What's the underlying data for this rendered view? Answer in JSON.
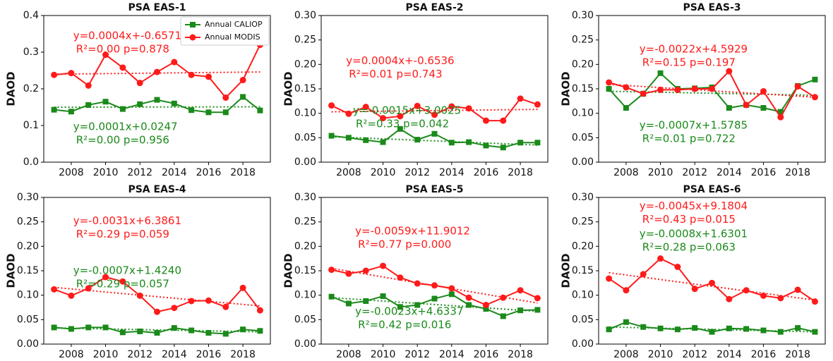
{
  "chart_data": [
    {
      "type": "line",
      "title": "PSA EAS-1",
      "ylabel": "DAOD",
      "legend": "upper right",
      "x": [
        2007,
        2008,
        2009,
        2010,
        2011,
        2012,
        2013,
        2014,
        2015,
        2016,
        2017,
        2018,
        2019
      ],
      "xlim": [
        2006.4,
        2019.6
      ],
      "xticks": [
        2008,
        2010,
        2012,
        2014,
        2016,
        2018
      ],
      "ylim": [
        0,
        0.4
      ],
      "yticks": [
        {
          "value": 0,
          "label": "0.0"
        },
        0.1,
        0.2,
        0.3,
        0.4
      ],
      "series": [
        {
          "name": "Annual CALIOP",
          "color": "#1a8a1a",
          "marker": "square",
          "values": [
            0.143,
            0.138,
            0.156,
            0.165,
            0.145,
            0.158,
            0.17,
            0.16,
            0.142,
            0.136,
            0.136,
            0.178,
            0.141
          ],
          "trend": [
            0.15,
            0.151
          ]
        },
        {
          "name": "Annual MODIS",
          "color": "#ff1a1a",
          "marker": "circle",
          "values": [
            0.238,
            0.243,
            0.209,
            0.293,
            0.258,
            0.216,
            0.246,
            0.273,
            0.238,
            0.233,
            0.176,
            0.224,
            0.32
          ],
          "trend": [
            0.24,
            0.246
          ]
        }
      ],
      "annotations": [
        {
          "text": "y=0.0004x+-0.6571",
          "stat": "R²=0.00 p=0.878",
          "color": "#ff1a1a"
        },
        {
          "text": "y=0.0001x+0.0247",
          "stat": "R²=0.00 p=0.956",
          "color": "#1a8a1a"
        }
      ]
    },
    {
      "type": "line",
      "title": "PSA EAS-2",
      "ylabel": "DAOD",
      "x": [
        2007,
        2008,
        2009,
        2010,
        2011,
        2012,
        2013,
        2014,
        2015,
        2016,
        2017,
        2018,
        2019
      ],
      "xlim": [
        2006.4,
        2019.6
      ],
      "xticks": [
        2008,
        2010,
        2012,
        2014,
        2016,
        2018
      ],
      "ylim": [
        0,
        0.3
      ],
      "yticks": [
        {
          "value": 0,
          "label": "0.00"
        },
        0.05,
        {
          "value": 0.1,
          "label": "0.10"
        },
        0.15,
        {
          "value": 0.2,
          "label": "0.20"
        },
        0.25,
        {
          "value": 0.3,
          "label": "0.30"
        }
      ],
      "series": [
        {
          "color": "#1a8a1a",
          "marker": "square",
          "values": [
            0.054,
            0.05,
            0.045,
            0.041,
            0.068,
            0.046,
            0.058,
            0.04,
            0.041,
            0.034,
            0.03,
            0.04,
            0.04
          ],
          "trend": [
            0.052,
            0.035
          ]
        },
        {
          "color": "#ff1a1a",
          "marker": "circle",
          "values": [
            0.116,
            0.099,
            0.113,
            0.09,
            0.094,
            0.115,
            0.097,
            0.114,
            0.11,
            0.085,
            0.085,
            0.13,
            0.118
          ],
          "trend": [
            0.103,
            0.108
          ]
        }
      ],
      "annotations": [
        {
          "text": "y=0.0004x+-0.6536",
          "stat": "R²=0.01 p=0.743",
          "color": "#ff1a1a"
        },
        {
          "text": "y=-0.0015x+3.0025",
          "stat": "R²=0.33 p=0.042",
          "color": "#1a8a1a"
        }
      ]
    },
    {
      "type": "line",
      "title": "PSA EAS-3",
      "ylabel": "DAOD",
      "x": [
        2007,
        2008,
        2009,
        2010,
        2011,
        2012,
        2013,
        2014,
        2015,
        2016,
        2017,
        2018,
        2019
      ],
      "xlim": [
        2006.4,
        2019.6
      ],
      "xticks": [
        2008,
        2010,
        2012,
        2014,
        2016,
        2018
      ],
      "ylim": [
        0,
        0.3
      ],
      "yticks": [
        {
          "value": 0,
          "label": "0.00"
        },
        0.05,
        {
          "value": 0.1,
          "label": "0.10"
        },
        0.15,
        {
          "value": 0.2,
          "label": "0.20"
        },
        0.25,
        {
          "value": 0.3,
          "label": "0.30"
        }
      ],
      "series": [
        {
          "color": "#1a8a1a",
          "marker": "square",
          "values": [
            0.15,
            0.111,
            0.14,
            0.182,
            0.15,
            0.151,
            0.153,
            0.111,
            0.117,
            0.111,
            0.103,
            0.156,
            0.169
          ],
          "trend": [
            0.145,
            0.137
          ]
        },
        {
          "color": "#ff1a1a",
          "marker": "circle",
          "values": [
            0.163,
            0.153,
            0.14,
            0.148,
            0.148,
            0.15,
            0.15,
            0.186,
            0.117,
            0.145,
            0.092,
            0.155,
            0.133
          ],
          "trend": [
            0.159,
            0.133
          ]
        }
      ],
      "annotations": [
        {
          "text": "y=-0.0022x+4.5929",
          "stat": "R²=0.15 p=0.197",
          "color": "#ff1a1a"
        },
        {
          "text": "y=-0.0007x+1.5785",
          "stat": "R²=0.01 p=0.722",
          "color": "#1a8a1a"
        }
      ]
    },
    {
      "type": "line",
      "title": "PSA EAS-4",
      "ylabel": "DAOD",
      "x": [
        2007,
        2008,
        2009,
        2010,
        2011,
        2012,
        2013,
        2014,
        2015,
        2016,
        2017,
        2018,
        2019
      ],
      "xlim": [
        2006.4,
        2019.6
      ],
      "xticks": [
        2008,
        2010,
        2012,
        2014,
        2016,
        2018
      ],
      "ylim": [
        0,
        0.3
      ],
      "yticks": [
        {
          "value": 0,
          "label": "0.00"
        },
        0.05,
        {
          "value": 0.1,
          "label": "0.10"
        },
        0.15,
        {
          "value": 0.2,
          "label": "0.20"
        },
        0.25,
        {
          "value": 0.3,
          "label": "0.30"
        }
      ],
      "series": [
        {
          "color": "#1a8a1a",
          "marker": "square",
          "values": [
            0.034,
            0.031,
            0.034,
            0.034,
            0.024,
            0.026,
            0.023,
            0.033,
            0.028,
            0.023,
            0.021,
            0.03,
            0.027
          ],
          "trend": [
            0.033,
            0.025
          ]
        },
        {
          "color": "#ff1a1a",
          "marker": "circle",
          "values": [
            0.112,
            0.099,
            0.114,
            0.137,
            0.128,
            0.099,
            0.066,
            0.074,
            0.088,
            0.089,
            0.076,
            0.115,
            0.069
          ],
          "trend": [
            0.116,
            0.078
          ]
        }
      ],
      "annotations": [
        {
          "text": "y=-0.0031x+6.3861",
          "stat": "R²=0.29 p=0.059",
          "color": "#ff1a1a"
        },
        {
          "text": "y=-0.0007x+1.4240",
          "stat": "R²=0.29 p=0.057",
          "color": "#1a8a1a"
        }
      ]
    },
    {
      "type": "line",
      "title": "PSA EAS-5",
      "ylabel": "DAOD",
      "x": [
        2007,
        2008,
        2009,
        2010,
        2011,
        2012,
        2013,
        2014,
        2015,
        2016,
        2017,
        2018,
        2019
      ],
      "xlim": [
        2006.4,
        2019.6
      ],
      "xticks": [
        2008,
        2010,
        2012,
        2014,
        2016,
        2018
      ],
      "ylim": [
        0,
        0.3
      ],
      "yticks": [
        {
          "value": 0,
          "label": "0.00"
        },
        0.05,
        {
          "value": 0.1,
          "label": "0.10"
        },
        0.15,
        {
          "value": 0.2,
          "label": "0.20"
        },
        0.25,
        {
          "value": 0.3,
          "label": "0.30"
        }
      ],
      "series": [
        {
          "color": "#1a8a1a",
          "marker": "square",
          "values": [
            0.097,
            0.083,
            0.088,
            0.098,
            0.076,
            0.08,
            0.093,
            0.102,
            0.08,
            0.072,
            0.057,
            0.069,
            0.07
          ],
          "trend": [
            0.095,
            0.067
          ]
        },
        {
          "color": "#ff1a1a",
          "marker": "circle",
          "values": [
            0.152,
            0.144,
            0.15,
            0.16,
            0.136,
            0.124,
            0.12,
            0.114,
            0.095,
            0.08,
            0.095,
            0.11,
            0.094
          ],
          "trend": [
            0.155,
            0.084
          ]
        }
      ],
      "annotations": [
        {
          "text": "y=-0.0059x+11.9012",
          "stat": "R²=0.77 p=0.000",
          "color": "#ff1a1a"
        },
        {
          "text": "y=-0.0023x+4.6337",
          "stat": "R²=0.42 p=0.016",
          "color": "#1a8a1a"
        }
      ]
    },
    {
      "type": "line",
      "title": "PSA EAS-6",
      "ylabel": "DAOD",
      "x": [
        2007,
        2008,
        2009,
        2010,
        2011,
        2012,
        2013,
        2014,
        2015,
        2016,
        2017,
        2018,
        2019
      ],
      "xlim": [
        2006.4,
        2019.6
      ],
      "xticks": [
        2008,
        2010,
        2012,
        2014,
        2016,
        2018
      ],
      "ylim": [
        0,
        0.3
      ],
      "yticks": [
        {
          "value": 0,
          "label": "0.00"
        },
        0.05,
        {
          "value": 0.1,
          "label": "0.10"
        },
        0.15,
        {
          "value": 0.2,
          "label": "0.20"
        },
        0.25,
        {
          "value": 0.3,
          "label": "0.30"
        }
      ],
      "series": [
        {
          "color": "#1a8a1a",
          "marker": "square",
          "values": [
            0.03,
            0.045,
            0.035,
            0.032,
            0.03,
            0.033,
            0.025,
            0.032,
            0.031,
            0.028,
            0.025,
            0.033,
            0.025
          ],
          "trend": [
            0.035,
            0.025
          ]
        },
        {
          "color": "#ff1a1a",
          "marker": "circle",
          "values": [
            0.134,
            0.11,
            0.143,
            0.175,
            0.158,
            0.113,
            0.125,
            0.092,
            0.11,
            0.099,
            0.094,
            0.111,
            0.087
          ],
          "trend": [
            0.146,
            0.09
          ]
        }
      ],
      "annotations": [
        {
          "text": "y=-0.0045x+9.1804",
          "stat": "R²=0.43 p=0.015",
          "color": "#ff1a1a"
        },
        {
          "text": "y=-0.0008x+1.6301",
          "stat": "R²=0.28 p=0.063",
          "color": "#1a8a1a"
        }
      ]
    }
  ]
}
